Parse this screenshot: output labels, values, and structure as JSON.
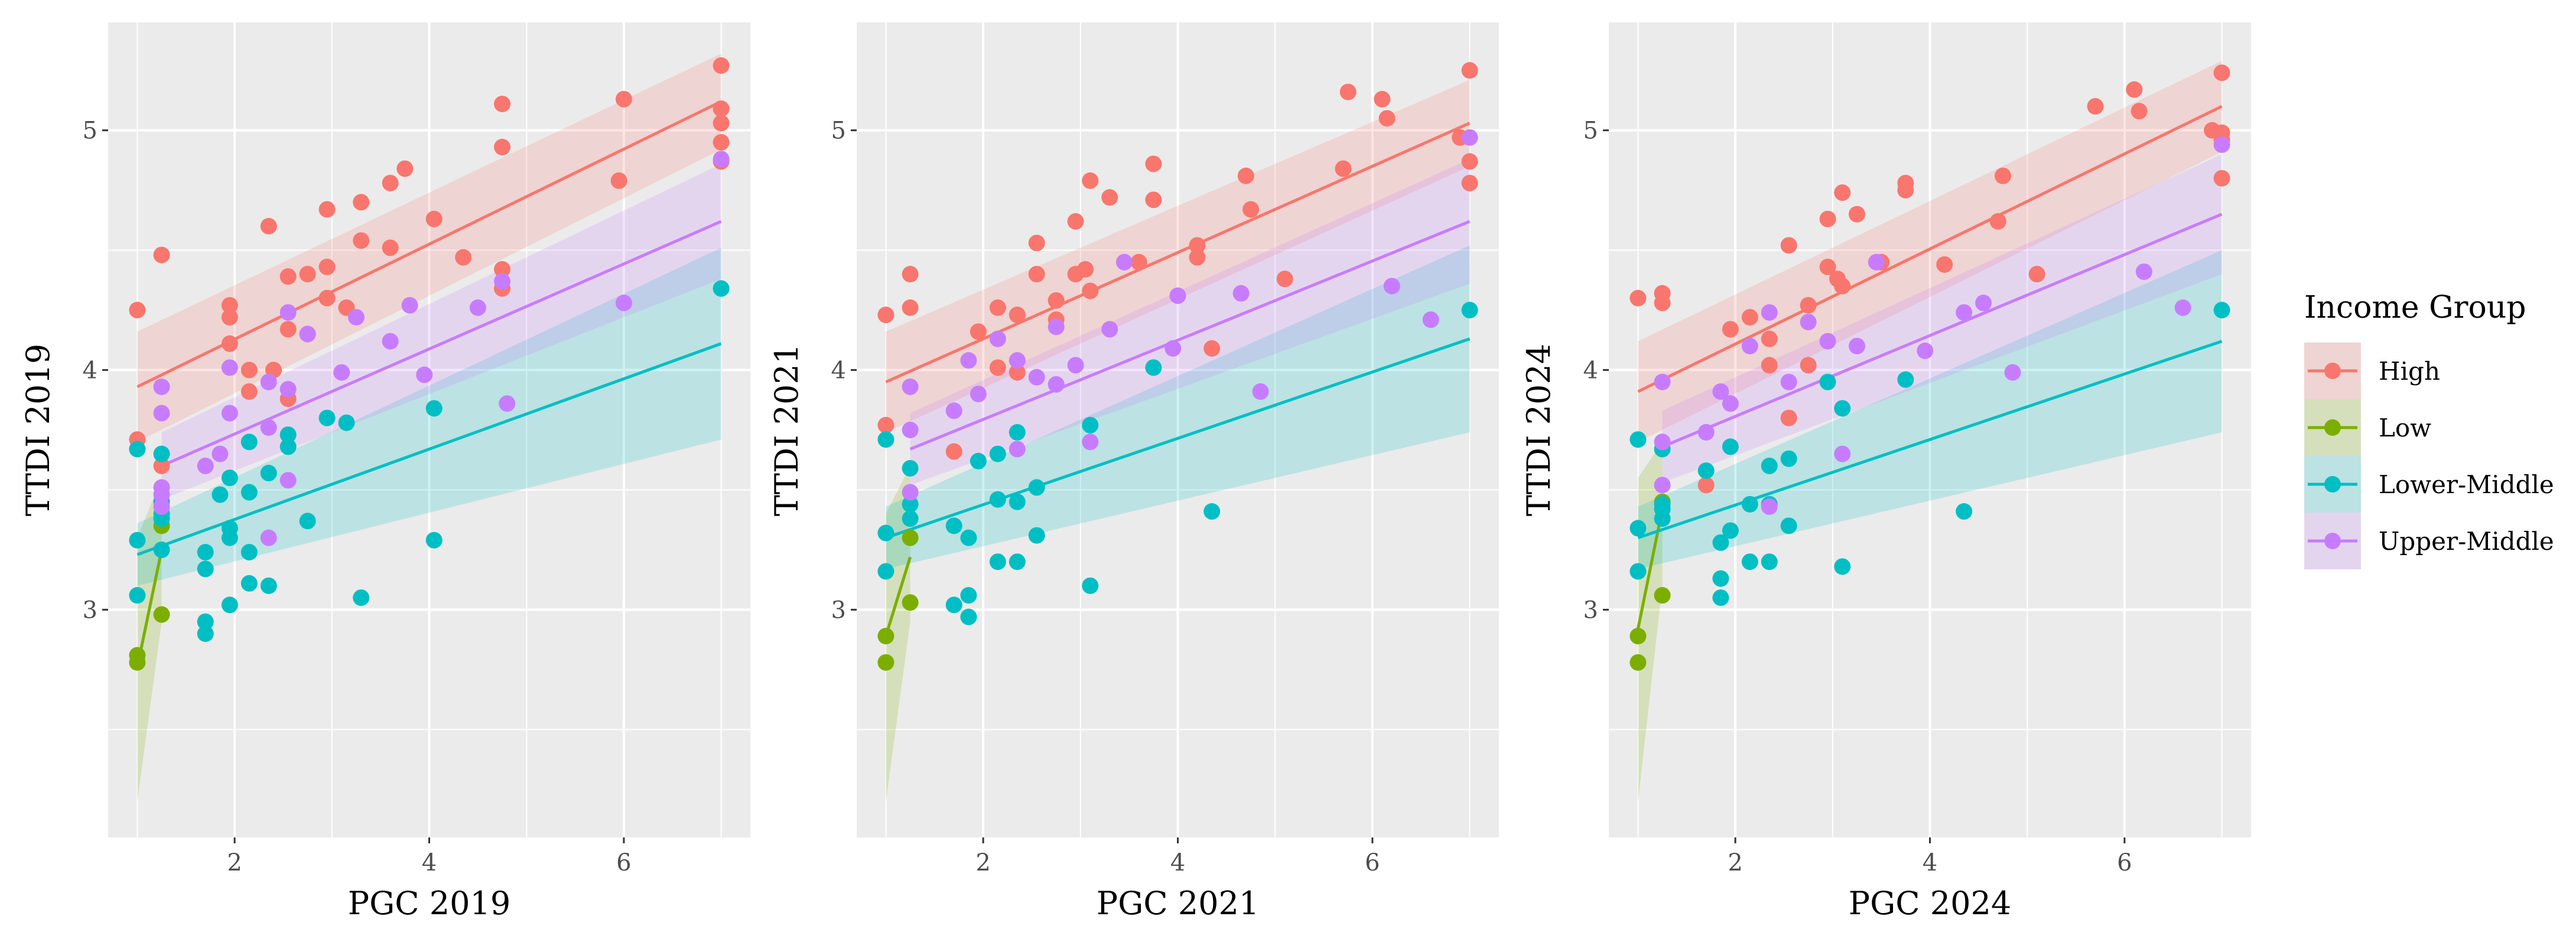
{
  "chart_data": [
    {
      "type": "scatter",
      "xlabel": "PGC 2019",
      "ylabel": "TTDI 2019",
      "xlim": [
        0.7,
        7.3
      ],
      "ylim": [
        2.05,
        5.45
      ],
      "xticks": [
        2,
        4,
        6
      ],
      "yticks": [
        3,
        4,
        5
      ],
      "series": [
        {
          "name": "High",
          "color": "#F8766D",
          "x": [
            1,
            1,
            1.25,
            1.25,
            1.95,
            1.95,
            1.95,
            2.15,
            2.15,
            2.35,
            2.4,
            2.55,
            2.55,
            2.55,
            2.75,
            2.75,
            2.95,
            2.95,
            2.95,
            3.15,
            3.3,
            3.3,
            3.6,
            3.6,
            3.75,
            4.05,
            4.35,
            4.75,
            4.75,
            4.75,
            4.75,
            5.95,
            6,
            7,
            7,
            7,
            7,
            7
          ],
          "y": [
            4.25,
            3.71,
            4.48,
            3.6,
            4.27,
            4.22,
            4.11,
            4.0,
            3.91,
            4.6,
            4.0,
            4.39,
            4.17,
            3.88,
            4.4,
            4.15,
            4.67,
            4.43,
            4.3,
            4.26,
            4.7,
            4.54,
            4.78,
            4.51,
            4.84,
            4.63,
            4.47,
            5.11,
            4.93,
            4.42,
            4.34,
            4.79,
            5.13,
            5.27,
            5.09,
            5.03,
            4.95,
            4.87
          ],
          "fit": {
            "x": [
              1,
              7
            ],
            "y": [
              3.93,
              5.12
            ],
            "ci_lo": [
              3.7,
              4.92
            ],
            "ci_hi": [
              4.16,
              5.32
            ]
          }
        },
        {
          "name": "Low",
          "color": "#7CAE00",
          "x": [
            1,
            1,
            1.25,
            1.25
          ],
          "y": [
            2.81,
            2.78,
            2.98,
            3.35
          ],
          "fit": {
            "x": [
              1,
              1.25
            ],
            "y": [
              2.76,
              3.25
            ],
            "ci_lo": [
              2.2,
              2.95
            ],
            "ci_hi": [
              3.3,
              3.55
            ]
          }
        },
        {
          "name": "Lower-Middle",
          "color": "#00BFC4",
          "x": [
            1,
            1,
            1,
            1.25,
            1.25,
            1.25,
            1.25,
            1.25,
            1.7,
            1.7,
            1.7,
            1.7,
            1.85,
            1.95,
            1.95,
            1.95,
            1.95,
            2.15,
            2.15,
            2.15,
            2.15,
            2.35,
            2.35,
            2.55,
            2.55,
            2.75,
            2.95,
            3.15,
            3.3,
            4.05,
            4.05,
            7
          ],
          "y": [
            3.67,
            3.29,
            3.06,
            3.65,
            3.45,
            3.4,
            3.25,
            3.38,
            3.24,
            3.17,
            2.95,
            2.9,
            3.48,
            3.34,
            3.3,
            3.02,
            3.55,
            3.7,
            3.49,
            3.24,
            3.11,
            3.57,
            3.1,
            3.73,
            3.68,
            3.37,
            3.8,
            3.78,
            3.05,
            3.84,
            3.29,
            4.34
          ],
          "fit": {
            "x": [
              1,
              7
            ],
            "y": [
              3.23,
              4.11
            ],
            "ci_lo": [
              3.1,
              3.71
            ],
            "ci_hi": [
              3.36,
              4.51
            ]
          }
        },
        {
          "name": "Upper-Middle",
          "color": "#C77CFF",
          "x": [
            1.25,
            1.25,
            1.25,
            1.25,
            1.25,
            1.7,
            1.85,
            1.95,
            1.95,
            2.35,
            2.35,
            2.35,
            2.55,
            2.55,
            2.55,
            2.75,
            3.1,
            3.25,
            3.6,
            3.8,
            3.95,
            4.5,
            4.75,
            4.8,
            6,
            7
          ],
          "y": [
            3.93,
            3.82,
            3.51,
            3.48,
            3.43,
            3.6,
            3.65,
            4.01,
            3.82,
            3.95,
            3.76,
            3.3,
            4.24,
            3.92,
            3.54,
            4.15,
            3.99,
            4.22,
            4.12,
            4.27,
            3.98,
            4.26,
            4.37,
            3.86,
            4.28,
            4.88
          ],
          "fit": {
            "x": [
              1.25,
              7
            ],
            "y": [
              3.6,
              4.62
            ],
            "ci_lo": [
              3.46,
              4.38
            ],
            "ci_hi": [
              3.74,
              4.86
            ]
          }
        }
      ]
    },
    {
      "type": "scatter",
      "xlabel": "PGC 2021",
      "ylabel": "TTDI 2021",
      "xlim": [
        0.7,
        7.3
      ],
      "ylim": [
        2.05,
        5.45
      ],
      "xticks": [
        2,
        4,
        6
      ],
      "yticks": [
        3,
        4,
        5
      ],
      "series": [
        {
          "name": "High",
          "color": "#F8766D",
          "x": [
            1,
            1,
            1.25,
            1.25,
            1.7,
            1.95,
            2.15,
            2.15,
            2.35,
            2.35,
            2.55,
            2.55,
            2.75,
            2.75,
            2.95,
            2.95,
            3.05,
            3.1,
            3.1,
            3.3,
            3.6,
            3.75,
            3.75,
            4.2,
            4.2,
            4.35,
            4.75,
            4.7,
            5.1,
            5.7,
            5.75,
            6.1,
            6.15,
            6.9,
            7,
            7,
            7
          ],
          "y": [
            4.23,
            3.77,
            4.4,
            4.26,
            3.66,
            4.16,
            4.26,
            4.01,
            4.23,
            3.99,
            4.53,
            4.4,
            4.29,
            4.21,
            4.62,
            4.4,
            4.42,
            4.79,
            4.33,
            4.72,
            4.45,
            4.86,
            4.71,
            4.52,
            4.47,
            4.09,
            4.67,
            4.81,
            4.38,
            4.84,
            5.16,
            5.13,
            5.05,
            4.97,
            5.25,
            4.87,
            4.78
          ],
          "fit": {
            "x": [
              1,
              7
            ],
            "y": [
              3.95,
              5.03
            ],
            "ci_lo": [
              3.74,
              4.85
            ],
            "ci_hi": [
              4.16,
              5.21
            ]
          }
        },
        {
          "name": "Low",
          "color": "#7CAE00",
          "x": [
            1,
            1,
            1.25,
            1.25
          ],
          "y": [
            2.89,
            2.78,
            3.03,
            3.3
          ],
          "fit": {
            "x": [
              1,
              1.25
            ],
            "y": [
              2.89,
              3.22
            ],
            "ci_lo": [
              2.2,
              2.95
            ],
            "ci_hi": [
              3.4,
              3.6
            ]
          }
        },
        {
          "name": "Lower-Middle",
          "color": "#00BFC4",
          "x": [
            1,
            1,
            1,
            1.25,
            1.25,
            1.25,
            1.7,
            1.7,
            1.85,
            1.85,
            1.85,
            1.95,
            2.15,
            2.15,
            2.15,
            2.35,
            2.35,
            2.35,
            2.55,
            2.55,
            3.1,
            3.1,
            3.75,
            4.35,
            7
          ],
          "y": [
            3.71,
            3.32,
            3.16,
            3.59,
            3.44,
            3.38,
            3.35,
            3.02,
            3.3,
            3.06,
            2.97,
            3.62,
            3.65,
            3.46,
            3.2,
            3.74,
            3.45,
            3.2,
            3.51,
            3.31,
            3.77,
            3.1,
            4.01,
            3.41,
            4.25
          ],
          "fit": {
            "x": [
              1,
              7
            ],
            "y": [
              3.3,
              4.13
            ],
            "ci_lo": [
              3.17,
              3.74
            ],
            "ci_hi": [
              3.43,
              4.52
            ]
          }
        },
        {
          "name": "Upper-Middle",
          "color": "#C77CFF",
          "x": [
            1.25,
            1.25,
            1.25,
            1.7,
            1.85,
            1.95,
            2.15,
            2.35,
            2.35,
            2.55,
            2.75,
            2.75,
            2.95,
            3.1,
            3.3,
            3.45,
            3.95,
            4,
            4.65,
            4.85,
            6.2,
            6.6,
            7
          ],
          "y": [
            3.93,
            3.75,
            3.49,
            3.83,
            4.04,
            3.9,
            4.13,
            4.04,
            3.67,
            3.97,
            4.18,
            3.94,
            4.02,
            3.7,
            4.17,
            4.45,
            4.09,
            4.31,
            4.32,
            3.91,
            4.35,
            4.21,
            4.97
          ],
          "fit": {
            "x": [
              1.25,
              7
            ],
            "y": [
              3.67,
              4.62
            ],
            "ci_lo": [
              3.52,
              4.36
            ],
            "ci_hi": [
              3.82,
              4.88
            ]
          }
        }
      ]
    },
    {
      "type": "scatter",
      "xlabel": "PGC 2024",
      "ylabel": "TTDI 2024",
      "xlim": [
        0.7,
        7.3
      ],
      "ylim": [
        2.05,
        5.45
      ],
      "xticks": [
        2,
        4,
        6
      ],
      "yticks": [
        3,
        4,
        5
      ],
      "series": [
        {
          "name": "High",
          "color": "#F8766D",
          "x": [
            1,
            1.25,
            1.25,
            1.7,
            1.95,
            2.15,
            2.35,
            2.35,
            2.55,
            2.55,
            2.75,
            2.75,
            2.95,
            2.95,
            3.05,
            3.1,
            3.1,
            3.25,
            3.5,
            3.75,
            3.75,
            4.15,
            4.75,
            4.7,
            5.1,
            5.7,
            6.1,
            6.15,
            6.9,
            7,
            7,
            7,
            7
          ],
          "y": [
            4.3,
            4.32,
            4.28,
            3.52,
            4.17,
            4.22,
            4.13,
            4.02,
            4.52,
            3.8,
            4.27,
            4.02,
            4.63,
            4.43,
            4.38,
            4.74,
            4.35,
            4.65,
            4.45,
            4.78,
            4.75,
            4.44,
            4.81,
            4.62,
            4.4,
            5.1,
            5.17,
            5.08,
            5.0,
            5.24,
            4.99,
            4.96,
            4.8
          ],
          "fit": {
            "x": [
              1,
              7
            ],
            "y": [
              3.91,
              5.1
            ],
            "ci_lo": [
              3.7,
              4.91
            ],
            "ci_hi": [
              4.12,
              5.29
            ]
          }
        },
        {
          "name": "Low",
          "color": "#7CAE00",
          "x": [
            1,
            1,
            1.25,
            1.25
          ],
          "y": [
            2.89,
            2.78,
            3.06,
            3.45
          ],
          "fit": {
            "x": [
              1,
              1.25
            ],
            "y": [
              2.92,
              3.42
            ],
            "ci_lo": [
              2.2,
              3.1
            ],
            "ci_hi": [
              3.55,
              3.7
            ]
          }
        },
        {
          "name": "Lower-Middle",
          "color": "#00BFC4",
          "x": [
            1,
            1,
            1,
            1.25,
            1.25,
            1.25,
            1.25,
            1.7,
            1.85,
            1.85,
            1.85,
            1.95,
            1.95,
            2.15,
            2.15,
            2.35,
            2.35,
            2.35,
            2.55,
            2.55,
            2.95,
            3.1,
            3.1,
            3.75,
            4.35,
            7
          ],
          "y": [
            3.71,
            3.34,
            3.16,
            3.67,
            3.44,
            3.38,
            3.42,
            3.58,
            3.28,
            3.13,
            3.05,
            3.33,
            3.68,
            3.44,
            3.2,
            3.6,
            3.44,
            3.2,
            3.63,
            3.35,
            3.95,
            3.84,
            3.18,
            3.96,
            3.41,
            4.25
          ],
          "fit": {
            "x": [
              1,
              7
            ],
            "y": [
              3.3,
              4.12
            ],
            "ci_lo": [
              3.17,
              3.74
            ],
            "ci_hi": [
              3.43,
              4.5
            ]
          }
        },
        {
          "name": "Upper-Middle",
          "color": "#C77CFF",
          "x": [
            1.25,
            1.25,
            1.25,
            1.7,
            1.85,
            1.95,
            2.15,
            2.35,
            2.35,
            2.55,
            2.75,
            2.95,
            3.1,
            3.25,
            3.45,
            3.95,
            4.35,
            4.55,
            4.85,
            6.2,
            6.6,
            7
          ],
          "y": [
            3.95,
            3.7,
            3.52,
            3.74,
            3.91,
            3.86,
            4.1,
            4.24,
            3.43,
            3.95,
            4.2,
            4.12,
            3.65,
            4.1,
            4.45,
            4.08,
            4.24,
            4.28,
            3.99,
            4.41,
            4.26,
            4.94
          ],
          "fit": {
            "x": [
              1.25,
              7
            ],
            "y": [
              3.68,
              4.65
            ],
            "ci_lo": [
              3.53,
              4.4
            ],
            "ci_hi": [
              3.83,
              4.9
            ]
          }
        }
      ]
    }
  ],
  "legend": {
    "title": "Income Group",
    "position": "right",
    "items": [
      {
        "label": "High",
        "color": "#F8766D"
      },
      {
        "label": "Low",
        "color": "#7CAE00"
      },
      {
        "label": "Lower-Middle",
        "color": "#00BFC4"
      },
      {
        "label": "Upper-Middle",
        "color": "#C77CFF"
      }
    ]
  }
}
